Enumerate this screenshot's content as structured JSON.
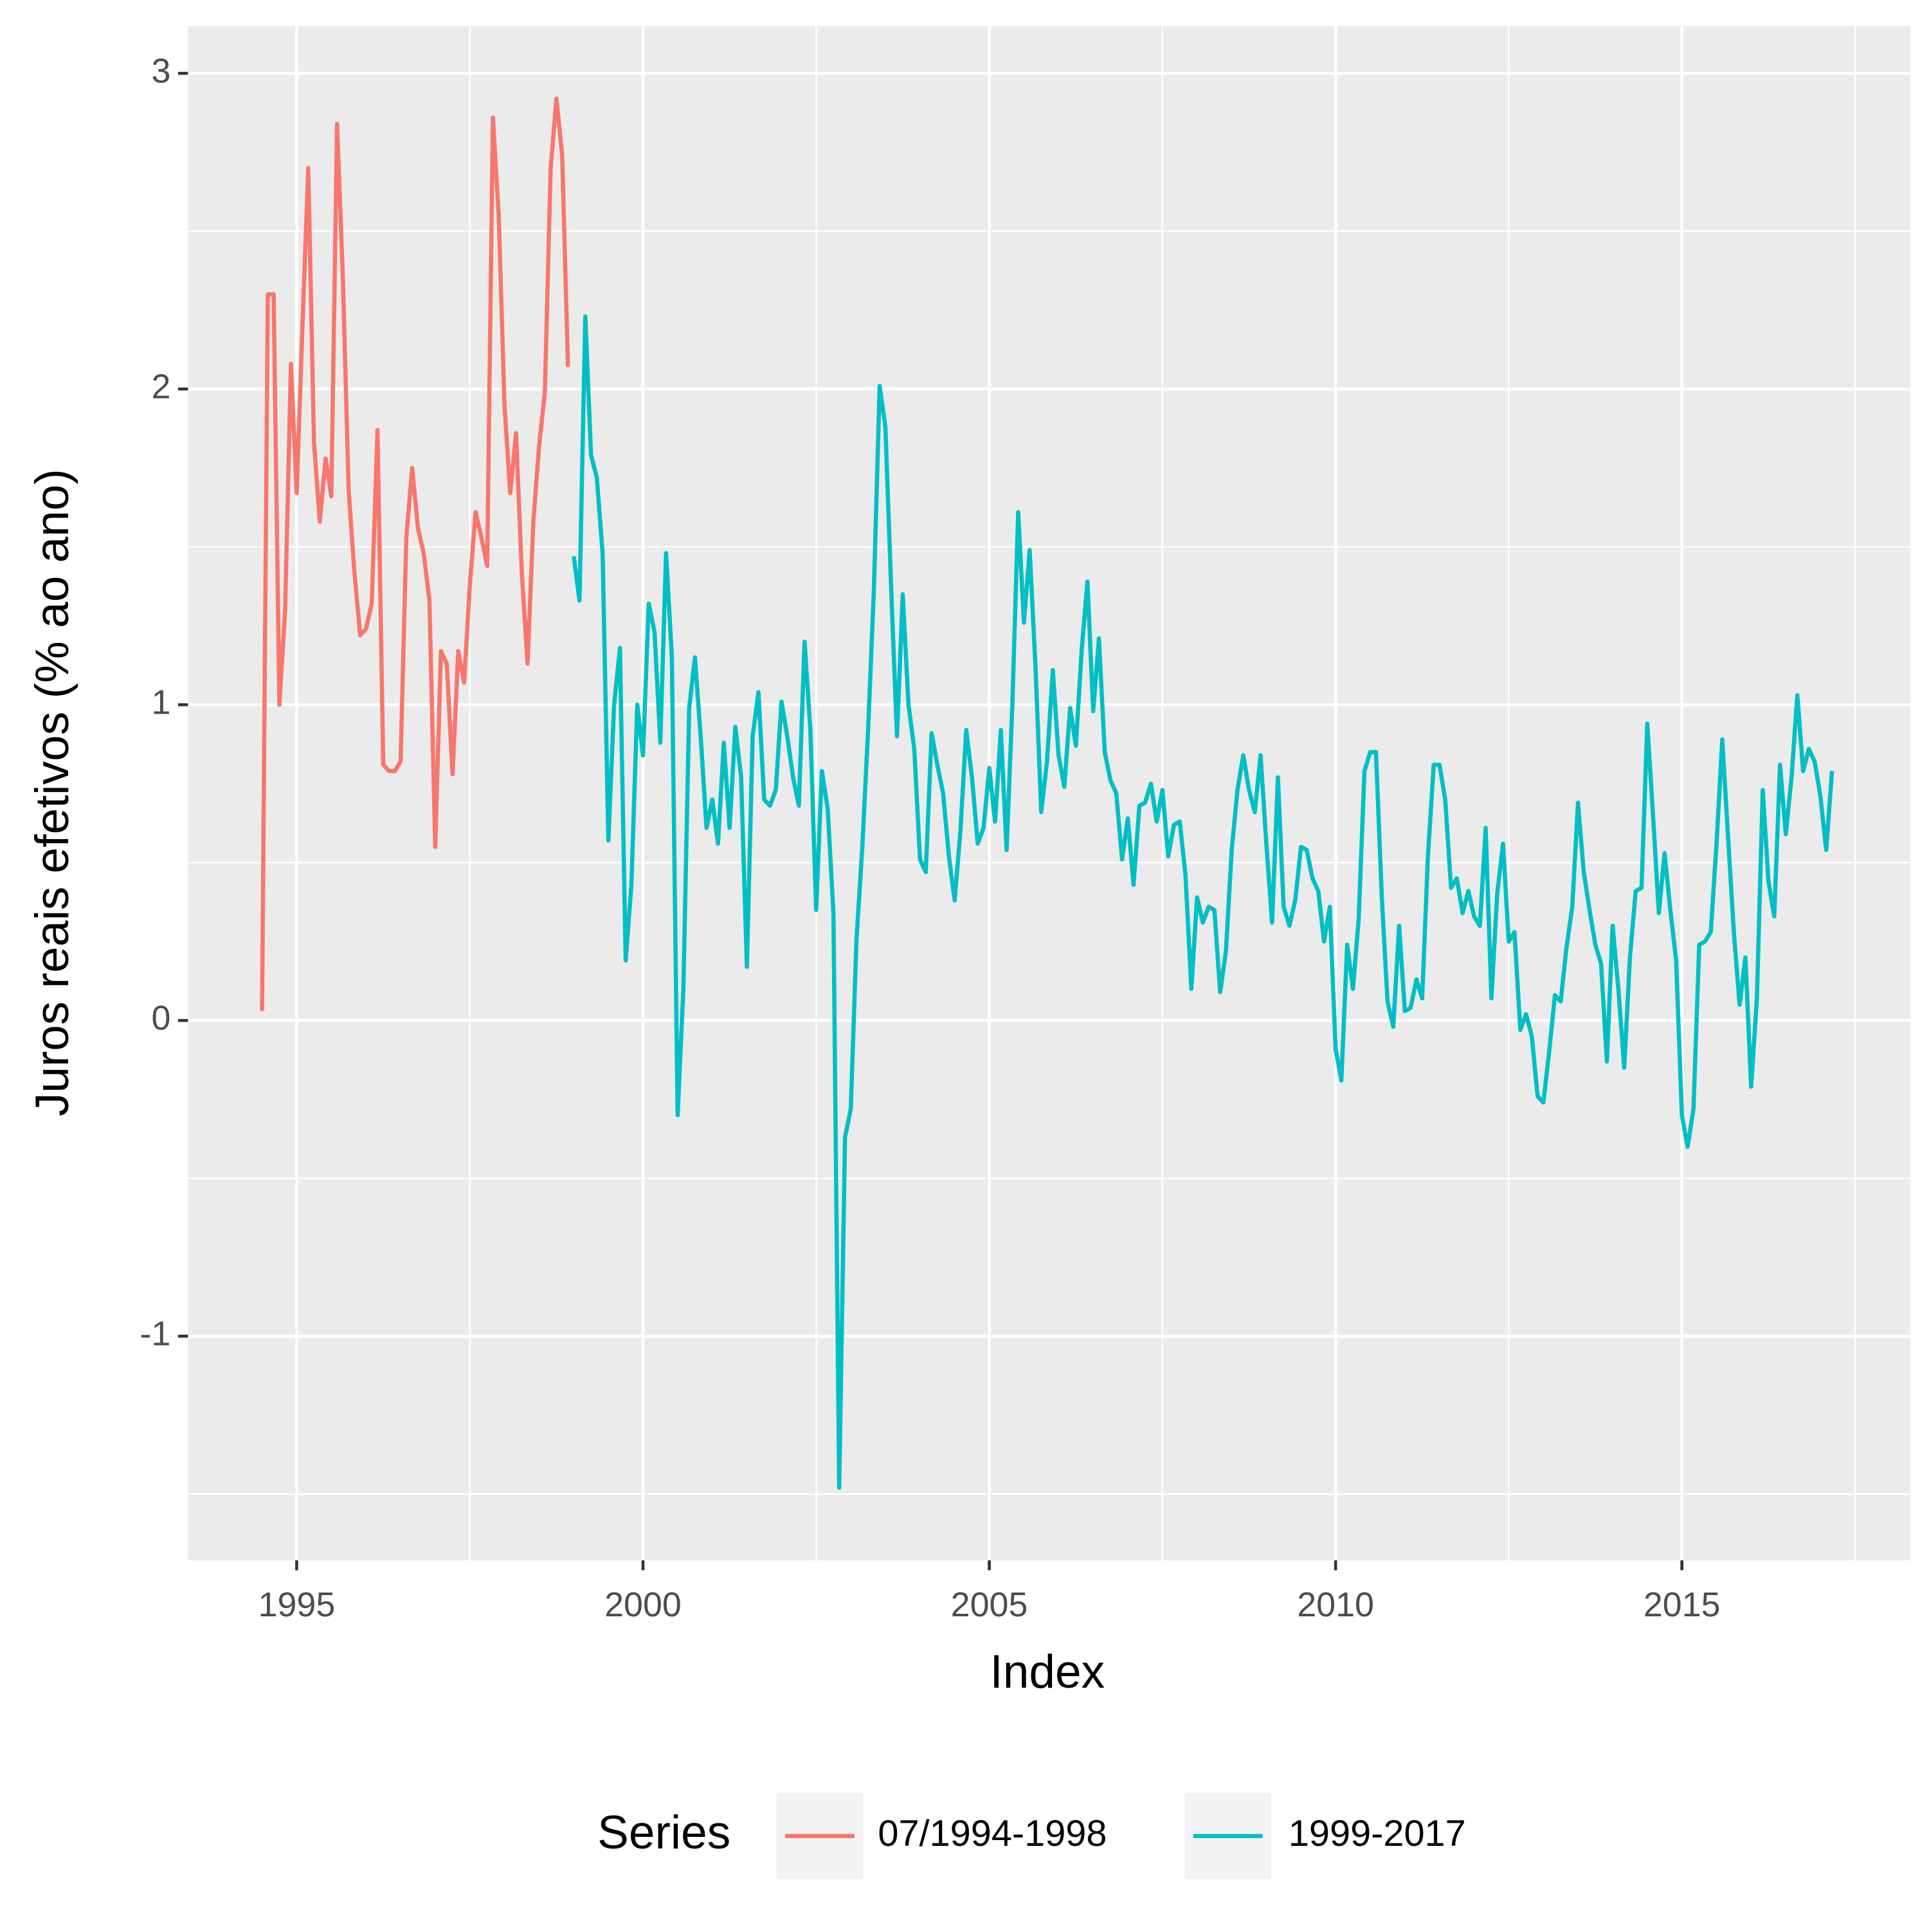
{
  "chart_data": {
    "type": "line",
    "xlabel": "Index",
    "ylabel": "Juros reais efetivos (% ao ano)",
    "legend_title": "Series",
    "legend_position": "bottom",
    "grid": true,
    "xlim": [
      1993.43,
      2018.3
    ],
    "ylim": [
      -1.71,
      3.15
    ],
    "xticks": [
      1995,
      2000,
      2005,
      2010,
      2015
    ],
    "yticks": [
      -1,
      0,
      1,
      2,
      3
    ],
    "x_minor_ticks": [
      1997.5,
      2002.5,
      2007.5,
      2012.5,
      2017.5
    ],
    "y_minor_ticks": [
      -1.5,
      -0.5,
      0.5,
      1.5,
      2.5
    ],
    "series": [
      {
        "name": "07/1994-1998",
        "color": "#F8766D",
        "x": [
          1994.5,
          1994.583,
          1994.667,
          1994.75,
          1994.833,
          1994.917,
          1995,
          1995.083,
          1995.167,
          1995.25,
          1995.333,
          1995.417,
          1995.5,
          1995.583,
          1995.667,
          1995.75,
          1995.833,
          1995.917,
          1996,
          1996.083,
          1996.167,
          1996.25,
          1996.333,
          1996.417,
          1996.5,
          1996.583,
          1996.667,
          1996.75,
          1996.833,
          1996.917,
          1997,
          1997.083,
          1997.167,
          1997.25,
          1997.333,
          1997.417,
          1997.5,
          1997.583,
          1997.667,
          1997.75,
          1997.833,
          1997.917,
          1998,
          1998.083,
          1998.167,
          1998.25,
          1998.333,
          1998.417,
          1998.5,
          1998.583,
          1998.667,
          1998.75,
          1998.833,
          1998.917
        ],
        "values": [
          0.03,
          2.3,
          2.3,
          1.0,
          1.3,
          2.08,
          1.67,
          2.2,
          2.7,
          1.83,
          1.58,
          1.78,
          1.66,
          2.84,
          2.35,
          1.68,
          1.42,
          1.22,
          1.24,
          1.32,
          1.87,
          0.81,
          0.79,
          0.79,
          0.82,
          1.53,
          1.75,
          1.56,
          1.48,
          1.33,
          0.55,
          1.17,
          1.13,
          0.78,
          1.17,
          1.07,
          1.38,
          1.61,
          1.53,
          1.44,
          2.86,
          2.55,
          1.95,
          1.67,
          1.86,
          1.42,
          1.13,
          1.58,
          1.82,
          1.99,
          2.7,
          2.92,
          2.74,
          2.07
        ]
      },
      {
        "name": "1999-2017",
        "color": "#00BFC4",
        "x": [
          1999,
          1999.083,
          1999.167,
          1999.25,
          1999.333,
          1999.417,
          1999.5,
          1999.583,
          1999.667,
          1999.75,
          1999.833,
          1999.917,
          2000,
          2000.083,
          2000.167,
          2000.25,
          2000.333,
          2000.417,
          2000.5,
          2000.583,
          2000.667,
          2000.75,
          2000.833,
          2000.917,
          2001,
          2001.083,
          2001.167,
          2001.25,
          2001.333,
          2001.417,
          2001.5,
          2001.583,
          2001.667,
          2001.75,
          2001.833,
          2001.917,
          2002,
          2002.083,
          2002.167,
          2002.25,
          2002.333,
          2002.417,
          2002.5,
          2002.583,
          2002.667,
          2002.75,
          2002.833,
          2002.917,
          2003,
          2003.083,
          2003.167,
          2003.25,
          2003.333,
          2003.417,
          2003.5,
          2003.583,
          2003.667,
          2003.75,
          2003.833,
          2003.917,
          2004,
          2004.083,
          2004.167,
          2004.25,
          2004.333,
          2004.417,
          2004.5,
          2004.583,
          2004.667,
          2004.75,
          2004.833,
          2004.917,
          2005,
          2005.083,
          2005.167,
          2005.25,
          2005.333,
          2005.417,
          2005.5,
          2005.583,
          2005.667,
          2005.75,
          2005.833,
          2005.917,
          2006,
          2006.083,
          2006.167,
          2006.25,
          2006.333,
          2006.417,
          2006.5,
          2006.583,
          2006.667,
          2006.75,
          2006.833,
          2006.917,
          2007,
          2007.083,
          2007.167,
          2007.25,
          2007.333,
          2007.417,
          2007.5,
          2007.583,
          2007.667,
          2007.75,
          2007.833,
          2007.917,
          2008,
          2008.083,
          2008.167,
          2008.25,
          2008.333,
          2008.417,
          2008.5,
          2008.583,
          2008.667,
          2008.75,
          2008.833,
          2008.917,
          2009,
          2009.083,
          2009.167,
          2009.25,
          2009.333,
          2009.417,
          2009.5,
          2009.583,
          2009.667,
          2009.75,
          2009.833,
          2009.917,
          2010,
          2010.083,
          2010.167,
          2010.25,
          2010.333,
          2010.417,
          2010.5,
          2010.583,
          2010.667,
          2010.75,
          2010.833,
          2010.917,
          2011,
          2011.083,
          2011.167,
          2011.25,
          2011.333,
          2011.417,
          2011.5,
          2011.583,
          2011.667,
          2011.75,
          2011.833,
          2011.917,
          2012,
          2012.083,
          2012.167,
          2012.25,
          2012.333,
          2012.417,
          2012.5,
          2012.583,
          2012.667,
          2012.75,
          2012.833,
          2012.917,
          2013,
          2013.083,
          2013.167,
          2013.25,
          2013.333,
          2013.417,
          2013.5,
          2013.583,
          2013.667,
          2013.75,
          2013.833,
          2013.917,
          2014,
          2014.083,
          2014.167,
          2014.25,
          2014.333,
          2014.417,
          2014.5,
          2014.583,
          2014.667,
          2014.75,
          2014.833,
          2014.917,
          2015,
          2015.083,
          2015.167,
          2015.25,
          2015.333,
          2015.417,
          2015.5,
          2015.583,
          2015.667,
          2015.75,
          2015.833,
          2015.917,
          2016,
          2016.083,
          2016.167,
          2016.25,
          2016.333,
          2016.417,
          2016.5,
          2016.583,
          2016.667,
          2016.75,
          2016.833,
          2016.917,
          2017,
          2017.083,
          2017.167
        ],
        "values": [
          1.47,
          1.33,
          2.23,
          1.79,
          1.72,
          1.48,
          0.57,
          1.0,
          1.18,
          0.19,
          0.43,
          1.0,
          0.84,
          1.32,
          1.23,
          0.88,
          1.48,
          1.15,
          -0.3,
          0.1,
          0.99,
          1.15,
          0.9,
          0.61,
          0.7,
          0.56,
          0.88,
          0.61,
          0.93,
          0.77,
          0.17,
          0.9,
          1.04,
          0.7,
          0.68,
          0.73,
          1.01,
          0.9,
          0.77,
          0.68,
          1.2,
          0.92,
          0.35,
          0.79,
          0.67,
          0.34,
          -1.48,
          -0.37,
          -0.28,
          0.26,
          0.55,
          0.92,
          1.36,
          2.01,
          1.88,
          1.37,
          0.9,
          1.35,
          1.0,
          0.86,
          0.51,
          0.47,
          0.91,
          0.81,
          0.72,
          0.52,
          0.38,
          0.6,
          0.92,
          0.77,
          0.56,
          0.61,
          0.8,
          0.63,
          0.92,
          0.54,
          1.0,
          1.61,
          1.26,
          1.49,
          1.12,
          0.66,
          0.82,
          1.11,
          0.84,
          0.74,
          0.99,
          0.87,
          1.17,
          1.39,
          0.98,
          1.21,
          0.85,
          0.76,
          0.72,
          0.51,
          0.64,
          0.43,
          0.68,
          0.69,
          0.75,
          0.63,
          0.73,
          0.52,
          0.62,
          0.63,
          0.46,
          0.1,
          0.39,
          0.31,
          0.36,
          0.35,
          0.09,
          0.22,
          0.54,
          0.73,
          0.84,
          0.73,
          0.66,
          0.84,
          0.56,
          0.31,
          0.77,
          0.36,
          0.3,
          0.38,
          0.55,
          0.54,
          0.45,
          0.41,
          0.25,
          0.36,
          -0.09,
          -0.19,
          0.24,
          0.1,
          0.32,
          0.79,
          0.85,
          0.85,
          0.39,
          0.06,
          -0.02,
          0.3,
          0.03,
          0.04,
          0.13,
          0.07,
          0.52,
          0.81,
          0.81,
          0.7,
          0.42,
          0.45,
          0.34,
          0.41,
          0.33,
          0.3,
          0.61,
          0.07,
          0.4,
          0.56,
          0.25,
          0.28,
          -0.03,
          0.02,
          -0.05,
          -0.24,
          -0.26,
          -0.1,
          0.08,
          0.06,
          0.23,
          0.36,
          0.69,
          0.47,
          0.35,
          0.24,
          0.18,
          -0.13,
          0.3,
          0.1,
          -0.15,
          0.2,
          0.41,
          0.42,
          0.94,
          0.65,
          0.34,
          0.53,
          0.35,
          0.19,
          -0.3,
          -0.4,
          -0.28,
          0.24,
          0.25,
          0.28,
          0.56,
          0.89,
          0.58,
          0.28,
          0.05,
          0.2,
          -0.21,
          0.07,
          0.73,
          0.44,
          0.33,
          0.81,
          0.59,
          0.77,
          1.03,
          0.79,
          0.86,
          0.82,
          0.71,
          0.54,
          0.79
        ]
      }
    ]
  }
}
